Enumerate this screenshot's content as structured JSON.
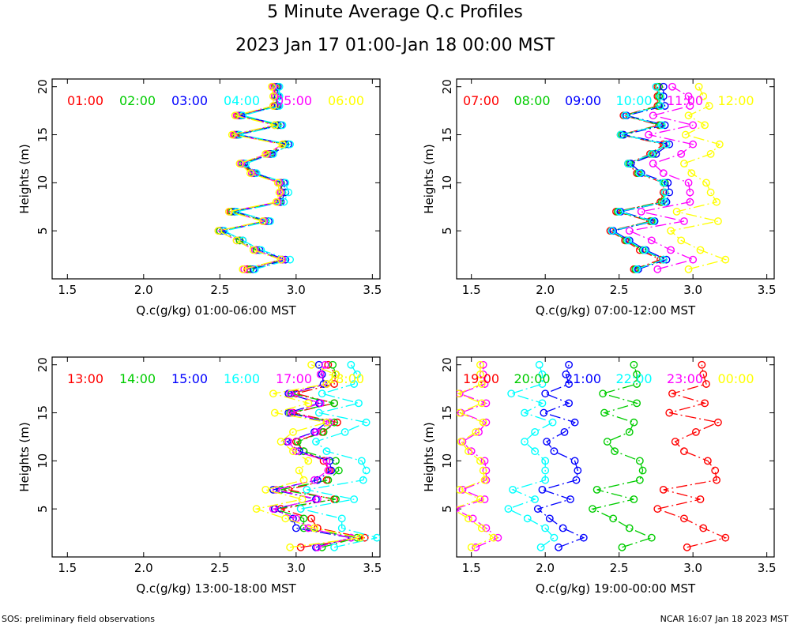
{
  "title": "5 Minute Average Q.c Profiles",
  "subtitle": "2023 Jan 17 01:00-Jan 18 00:00 MST",
  "footer": {
    "left": "SOS: preliminary field observations",
    "right": "NCAR 16:07 Jan 18 2023 MST"
  },
  "chart_data": [
    {
      "type": "line",
      "ylabel": "Heights (m)",
      "xlabel": "Q.c(g/kg) 01:00-06:00 MST",
      "xlim": [
        1.4,
        3.55
      ],
      "ylim": [
        0,
        20.8
      ],
      "xticks": [
        "1.5",
        "2.0",
        "2.5",
        "3.0",
        "3.5"
      ],
      "yticks": [
        "5",
        "10",
        "15",
        "20"
      ],
      "heights": [
        1,
        2,
        3,
        4,
        5,
        6,
        7,
        8,
        9,
        10,
        11,
        12,
        13,
        14,
        15,
        16,
        17,
        18,
        19,
        20
      ],
      "series": [
        {
          "name": "01:00",
          "color": "#ff0000",
          "values": [
            2.68,
            2.9,
            2.74,
            2.63,
            2.5,
            2.8,
            2.57,
            2.89,
            2.9,
            2.9,
            2.71,
            2.64,
            2.82,
            2.92,
            2.6,
            2.88,
            2.62,
            2.86,
            2.86,
            2.86
          ]
        },
        {
          "name": "02:00",
          "color": "#00cc00",
          "values": [
            2.7,
            2.91,
            2.74,
            2.63,
            2.5,
            2.8,
            2.58,
            2.89,
            2.91,
            2.9,
            2.72,
            2.65,
            2.83,
            2.93,
            2.61,
            2.88,
            2.63,
            2.87,
            2.87,
            2.87
          ]
        },
        {
          "name": "03:00",
          "color": "#0000ff",
          "values": [
            2.72,
            2.93,
            2.76,
            2.65,
            2.52,
            2.82,
            2.6,
            2.9,
            2.93,
            2.92,
            2.73,
            2.66,
            2.84,
            2.95,
            2.62,
            2.9,
            2.64,
            2.88,
            2.88,
            2.88
          ]
        },
        {
          "name": "04:00",
          "color": "#00ffff",
          "values": [
            2.73,
            2.96,
            2.77,
            2.65,
            2.53,
            2.83,
            2.61,
            2.92,
            2.95,
            2.93,
            2.74,
            2.67,
            2.85,
            2.96,
            2.63,
            2.91,
            2.65,
            2.89,
            2.89,
            2.89
          ]
        },
        {
          "name": "05:00",
          "color": "#ff00ff",
          "values": [
            2.66,
            2.91,
            2.73,
            2.61,
            2.49,
            2.79,
            2.56,
            2.88,
            2.9,
            2.89,
            2.71,
            2.64,
            2.81,
            2.91,
            2.59,
            2.86,
            2.61,
            2.85,
            2.86,
            2.85
          ]
        },
        {
          "name": "06:00",
          "color": "#ffff00",
          "values": [
            2.65,
            2.9,
            2.72,
            2.61,
            2.49,
            2.78,
            2.56,
            2.87,
            2.89,
            2.88,
            2.7,
            2.63,
            2.8,
            2.91,
            2.58,
            2.86,
            2.6,
            2.85,
            2.85,
            2.84
          ]
        }
      ]
    },
    {
      "type": "line",
      "ylabel": "Heights (m)",
      "xlabel": "Q.c(g/kg) 07:00-12:00 MST",
      "xlim": [
        1.4,
        3.55
      ],
      "ylim": [
        0,
        20.8
      ],
      "xticks": [
        "1.5",
        "2.0",
        "2.5",
        "3.0",
        "3.5"
      ],
      "yticks": [
        "5",
        "10",
        "15",
        "20"
      ],
      "heights": [
        1,
        2,
        3,
        4,
        5,
        6,
        7,
        8,
        9,
        10,
        11,
        12,
        13,
        14,
        15,
        16,
        17,
        18,
        19,
        20
      ],
      "series": [
        {
          "name": "07:00",
          "color": "#ff0000",
          "values": [
            2.6,
            2.78,
            2.64,
            2.54,
            2.44,
            2.71,
            2.48,
            2.78,
            2.8,
            2.8,
            2.62,
            2.56,
            2.71,
            2.8,
            2.51,
            2.77,
            2.53,
            2.76,
            2.76,
            2.76
          ]
        },
        {
          "name": "08:00",
          "color": "#00cc00",
          "values": [
            2.61,
            2.8,
            2.66,
            2.55,
            2.45,
            2.72,
            2.49,
            2.79,
            2.81,
            2.81,
            2.63,
            2.57,
            2.73,
            2.82,
            2.52,
            2.78,
            2.54,
            2.77,
            2.77,
            2.77
          ]
        },
        {
          "name": "09:00",
          "color": "#0000ff",
          "values": [
            2.63,
            2.82,
            2.68,
            2.57,
            2.46,
            2.74,
            2.51,
            2.82,
            2.84,
            2.83,
            2.65,
            2.58,
            2.75,
            2.84,
            2.53,
            2.81,
            2.55,
            2.81,
            2.8,
            2.8
          ]
        },
        {
          "name": "10:00",
          "color": "#00ffff",
          "values": [
            2.62,
            2.8,
            2.67,
            2.56,
            2.45,
            2.73,
            2.5,
            2.81,
            2.81,
            2.8,
            2.64,
            2.56,
            2.72,
            2.82,
            2.51,
            2.79,
            2.54,
            2.78,
            2.78,
            2.75
          ]
        },
        {
          "name": "11:00",
          "color": "#ff00ff",
          "values": [
            2.76,
            3.0,
            2.85,
            2.72,
            2.57,
            2.94,
            2.65,
            2.98,
            2.98,
            2.97,
            2.8,
            2.73,
            2.92,
            3.0,
            2.7,
            3.0,
            2.73,
            2.98,
            2.97,
            2.86
          ]
        },
        {
          "name": "12:00",
          "color": "#ffff00",
          "values": [
            2.97,
            3.22,
            3.05,
            2.92,
            2.85,
            3.17,
            2.89,
            3.16,
            3.12,
            3.09,
            2.99,
            2.94,
            3.12,
            3.18,
            2.95,
            3.08,
            2.97,
            3.11,
            3.07,
            3.04
          ]
        }
      ]
    },
    {
      "type": "line",
      "ylabel": "Heights (m)",
      "xlabel": "Q.c(g/kg) 13:00-18:00 MST",
      "xlim": [
        1.4,
        3.55
      ],
      "ylim": [
        0,
        20.8
      ],
      "xticks": [
        "1.5",
        "2.0",
        "2.5",
        "3.0",
        "3.5"
      ],
      "yticks": [
        "5",
        "10",
        "15",
        "20"
      ],
      "heights": [
        1,
        2,
        3,
        4,
        5,
        6,
        7,
        8,
        9,
        10,
        11,
        12,
        13,
        14,
        15,
        16,
        17,
        18,
        19,
        20
      ],
      "series": [
        {
          "name": "13:00",
          "color": "#ff0000",
          "values": [
            3.03,
            3.45,
            3.14,
            3.1,
            2.9,
            3.25,
            2.95,
            3.2,
            3.22,
            3.18,
            3.05,
            3.0,
            3.17,
            3.27,
            2.98,
            3.25,
            3.0,
            3.25,
            3.26,
            3.21
          ]
        },
        {
          "name": "14:00",
          "color": "#00cc00",
          "values": [
            3.17,
            3.4,
            3.05,
            3.05,
            2.86,
            3.26,
            2.9,
            3.21,
            3.28,
            3.26,
            3.05,
            3.01,
            3.18,
            3.25,
            2.96,
            3.25,
            2.97,
            3.2,
            3.26,
            3.24
          ]
        },
        {
          "name": "15:00",
          "color": "#0000ff",
          "values": [
            3.13,
            3.36,
            3.0,
            2.98,
            2.86,
            3.13,
            2.85,
            3.14,
            3.23,
            3.22,
            3.02,
            2.94,
            3.12,
            3.2,
            2.95,
            3.15,
            2.95,
            3.18,
            3.17,
            3.15
          ]
        },
        {
          "name": "16:00",
          "color": "#00ffff",
          "values": [
            3.25,
            3.53,
            3.3,
            3.3,
            3.03,
            3.38,
            3.07,
            3.44,
            3.46,
            3.43,
            3.2,
            3.13,
            3.32,
            3.46,
            3.15,
            3.41,
            3.17,
            3.38,
            3.4,
            3.36
          ]
        },
        {
          "name": "17:00",
          "color": "#ff00ff",
          "values": [
            3.14,
            3.36,
            3.08,
            3.0,
            2.85,
            3.14,
            2.87,
            3.12,
            3.21,
            3.2,
            3.0,
            2.95,
            3.13,
            3.22,
            2.97,
            3.16,
            2.96,
            3.2,
            3.16,
            3.19
          ]
        },
        {
          "name": "18:00",
          "color": "#ffff00",
          "values": [
            2.96,
            3.42,
            3.12,
            2.93,
            2.74,
            3.04,
            2.8,
            3.05,
            3.02,
            3.08,
            2.98,
            2.9,
            2.98,
            3.2,
            2.86,
            3.08,
            2.85,
            3.2,
            3.26,
            3.1
          ]
        }
      ]
    },
    {
      "type": "line",
      "ylabel": "Heights (m)",
      "xlabel": "Q.c(g/kg) 19:00-00:00 MST",
      "xlim": [
        1.4,
        3.55
      ],
      "ylim": [
        0,
        20.8
      ],
      "xticks": [
        "1.5",
        "2.0",
        "2.5",
        "3.0",
        "3.5"
      ],
      "yticks": [
        "5",
        "10",
        "15",
        "20"
      ],
      "heights": [
        1,
        2,
        3,
        4,
        5,
        6,
        7,
        8,
        9,
        10,
        11,
        12,
        13,
        14,
        15,
        16,
        17,
        18,
        19,
        20
      ],
      "series": [
        {
          "name": "19:00",
          "color": "#ff0000",
          "values": [
            2.96,
            3.22,
            3.07,
            2.94,
            2.76,
            3.05,
            2.8,
            3.16,
            3.15,
            3.1,
            2.94,
            2.88,
            3.02,
            3.17,
            2.84,
            3.08,
            2.86,
            3.09,
            3.07,
            3.06
          ]
        },
        {
          "name": "20:00",
          "color": "#00cc00",
          "values": [
            2.52,
            2.72,
            2.57,
            2.46,
            2.32,
            2.6,
            2.35,
            2.64,
            2.66,
            2.64,
            2.47,
            2.42,
            2.57,
            2.6,
            2.4,
            2.62,
            2.39,
            2.62,
            2.62,
            2.6
          ]
        },
        {
          "name": "21:00",
          "color": "#0000ff",
          "values": [
            2.09,
            2.26,
            2.12,
            2.03,
            1.95,
            2.17,
            1.98,
            2.21,
            2.22,
            2.2,
            2.06,
            2.01,
            2.13,
            2.2,
            1.99,
            2.16,
            2.0,
            2.16,
            2.14,
            2.16
          ]
        },
        {
          "name": "22:00",
          "color": "#00ffff",
          "values": [
            1.97,
            2.06,
            2.0,
            1.88,
            1.75,
            1.93,
            1.78,
            2.0,
            2.0,
            2.0,
            1.93,
            1.86,
            1.93,
            2.05,
            1.86,
            1.98,
            1.77,
            1.98,
            1.98,
            1.96
          ]
        },
        {
          "name": "23:00",
          "color": "#ff00ff",
          "values": [
            1.53,
            1.68,
            1.6,
            1.51,
            1.39,
            1.59,
            1.44,
            1.6,
            1.6,
            1.59,
            1.5,
            1.44,
            1.55,
            1.6,
            1.43,
            1.6,
            1.42,
            1.59,
            1.58,
            1.58
          ]
        },
        {
          "name": "00:00",
          "color": "#ffff00",
          "values": [
            1.5,
            1.65,
            1.57,
            1.48,
            1.37,
            1.56,
            1.42,
            1.59,
            1.58,
            1.56,
            1.48,
            1.43,
            1.53,
            1.58,
            1.42,
            1.57,
            1.41,
            1.57,
            1.56,
            1.56
          ]
        }
      ]
    }
  ]
}
